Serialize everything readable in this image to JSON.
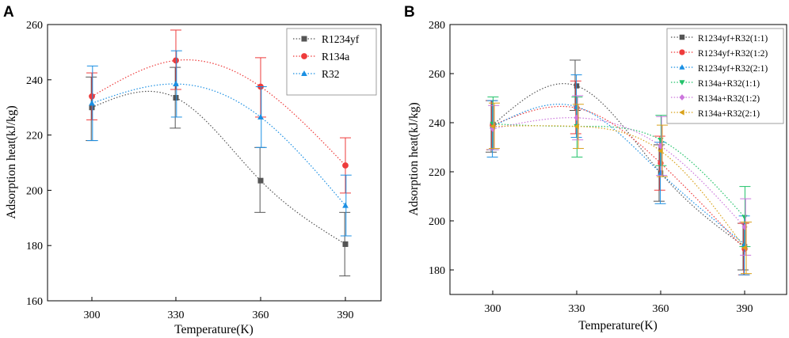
{
  "chart_data": [
    {
      "panel_label": "A",
      "type": "scatter",
      "xlabel": "Temperature(K)",
      "ylabel": "Adsorption heat(kJ/kg)",
      "x": [
        300,
        330,
        360,
        390
      ],
      "x_ticks": [
        "300",
        "330",
        "360",
        "390"
      ],
      "ylim": [
        160,
        260
      ],
      "y_ticks": [
        "160",
        "180",
        "200",
        "220",
        "240",
        "260"
      ],
      "legend_position": "top-right",
      "series": [
        {
          "name": "R1234yf",
          "color": "#555555",
          "marker": "square",
          "values": [
            230,
            233.5,
            203.5,
            180.5
          ],
          "err_low": [
            218,
            222.5,
            192,
            169
          ],
          "err_high": [
            241,
            244.5,
            215.5,
            192
          ]
        },
        {
          "name": "R134a",
          "color": "#ee3b3b",
          "marker": "circle",
          "values": [
            234,
            247,
            237.5,
            209
          ],
          "err_low": [
            225.5,
            236.5,
            226.5,
            199
          ],
          "err_high": [
            242.5,
            258,
            248,
            219
          ]
        },
        {
          "name": "R32",
          "color": "#1a8fe3",
          "marker": "triangle-up",
          "values": [
            231.5,
            238.5,
            226.5,
            194.5
          ],
          "err_low": [
            218,
            226.5,
            215.5,
            183.5
          ],
          "err_high": [
            245,
            250.5,
            237.5,
            205.5
          ]
        }
      ]
    },
    {
      "panel_label": "B",
      "type": "scatter",
      "xlabel": "Temperature(K)",
      "ylabel": "Adsorption heat(kJ/kg)",
      "x": [
        300,
        330,
        360,
        390
      ],
      "x_ticks": [
        "300",
        "330",
        "360",
        "390"
      ],
      "ylim": [
        170,
        280
      ],
      "y_ticks": [
        "180",
        "200",
        "220",
        "240",
        "260",
        "280"
      ],
      "legend_position": "top-right",
      "series": [
        {
          "name": "R1234yf+R32(1:1)",
          "color": "#555555",
          "marker": "square",
          "values": [
            239,
            255,
            219.5,
            189.5
          ],
          "err_low": [
            228,
            245,
            208,
            180
          ],
          "err_high": [
            249,
            265.5,
            231,
            199
          ]
        },
        {
          "name": "R1234yf+R32(1:2)",
          "color": "#ee3b3b",
          "marker": "circle",
          "values": [
            239,
            246,
            223.5,
            188.5
          ],
          "err_low": [
            229,
            235.5,
            212.5,
            178
          ],
          "err_high": [
            249,
            257,
            234.5,
            199
          ]
        },
        {
          "name": "R1234yf+R32(2:1)",
          "color": "#1a8fe3",
          "marker": "triangle-up",
          "values": [
            238.5,
            246.5,
            219.5,
            190.5
          ],
          "err_low": [
            226,
            234,
            207,
            178
          ],
          "err_high": [
            249,
            259.5,
            232,
            202
          ]
        },
        {
          "name": "R134a+R32(1:1)",
          "color": "#22c26a",
          "marker": "triangle-down",
          "values": [
            239.5,
            238.5,
            233,
            201.5
          ],
          "err_low": [
            229,
            226,
            222.5,
            189.5
          ],
          "err_high": [
            250.5,
            250.5,
            243,
            214
          ]
        },
        {
          "name": "R134a+R32(1:2)",
          "color": "#cc77dd",
          "marker": "diamond",
          "values": [
            237.5,
            242,
            230.5,
            197.5
          ],
          "err_low": [
            229,
            233,
            218.5,
            186
          ],
          "err_high": [
            247,
            251,
            242.5,
            209
          ]
        },
        {
          "name": "R134a+R32(2:1)",
          "color": "#d9a21b",
          "marker": "triangle-left",
          "values": [
            238.5,
            238.5,
            228.5,
            189
          ],
          "err_low": [
            229.5,
            229.5,
            218,
            178.5
          ],
          "err_high": [
            248,
            247.5,
            239,
            199.5
          ]
        }
      ]
    }
  ]
}
